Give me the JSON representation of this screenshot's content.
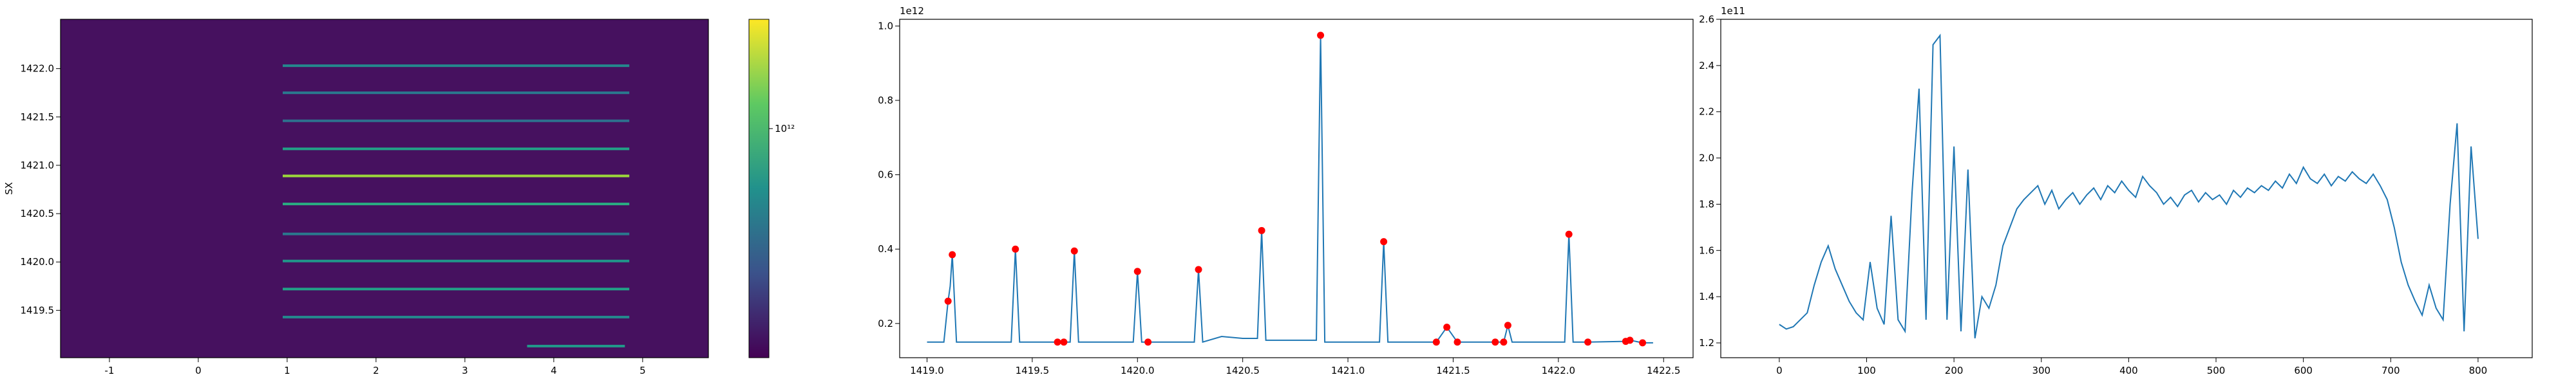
{
  "chart_data": [
    {
      "type": "heatmap",
      "ylabel": "SX",
      "xlim": [
        -1.55,
        5.74
      ],
      "ylim": [
        1419.01,
        1422.51
      ],
      "xticks": [
        -1,
        0,
        1,
        2,
        3,
        4,
        5
      ],
      "yticks": [
        {
          "value": 1419.5,
          "label": "1419.5"
        },
        {
          "value": 1420,
          "label": "1420.0"
        },
        {
          "value": 1420.5,
          "label": "1420.5"
        },
        {
          "value": 1421,
          "label": "1421.0"
        },
        {
          "value": 1421.5,
          "label": "1421.5"
        },
        {
          "value": 1422,
          "label": "1422.0"
        }
      ],
      "row_centers": [
        1422.03,
        1421.75,
        1421.46,
        1421.17,
        1420.89,
        1420.6,
        1420.29,
        1420.01,
        1419.72,
        1419.43,
        1419.13
      ],
      "row_values": [
        500000000000,
        400000000000,
        350000000000,
        700000000000,
        1800000000000,
        800000000000,
        400000000000,
        600000000000,
        700000000000,
        500000000000,
        600000000000
      ],
      "row_x0": [
        0.95,
        0.95,
        0.95,
        0.95,
        0.95,
        0.95,
        0.95,
        0.95,
        0.95,
        0.95,
        3.7
      ],
      "row_x1": [
        4.85,
        4.85,
        4.85,
        4.85,
        4.85,
        4.85,
        4.85,
        4.85,
        4.85,
        4.85,
        4.8
      ],
      "colorbar_scale": "log",
      "clim": [
        100000000000,
        3000000000000
      ],
      "colorbar_ticks": [
        {
          "value": 1000000000000,
          "label": "10¹²"
        }
      ]
    },
    {
      "type": "line",
      "offset_text": "1e12",
      "xlim": [
        1418.87,
        1422.64
      ],
      "ylim": [
        0.108,
        1.018
      ],
      "xticks": [
        {
          "value": 1419,
          "label": "1419.0"
        },
        1419.5,
        {
          "value": 1420,
          "label": "1420.0"
        },
        1420.5,
        {
          "value": 1421,
          "label": "1421.0"
        },
        1421.5,
        {
          "value": 1422,
          "label": "1422.0"
        },
        1422.5
      ],
      "yticks": [
        0.2,
        0.4,
        0.6,
        0.8,
        {
          "value": 1,
          "label": "1.0"
        }
      ],
      "series": [
        {
          "color": "#1f77b4",
          "marker": "none",
          "linestyle": "solid",
          "x": [
            1419.0,
            1419.08,
            1419.1,
            1419.11,
            1419.12,
            1419.14,
            1419.4,
            1419.42,
            1419.44,
            1419.6,
            1419.62,
            1419.65,
            1419.68,
            1419.7,
            1419.72,
            1419.98,
            1420.0,
            1420.02,
            1420.05,
            1420.27,
            1420.29,
            1420.31,
            1420.4,
            1420.5,
            1420.57,
            1420.59,
            1420.61,
            1420.85,
            1420.87,
            1420.89,
            1421.15,
            1421.17,
            1421.19,
            1421.42,
            1421.47,
            1421.52,
            1421.7,
            1421.74,
            1421.76,
            1421.78,
            1422.03,
            1422.05,
            1422.07,
            1422.14,
            1422.32,
            1422.34,
            1422.4,
            1422.45
          ],
          "values": [
            0.15,
            0.15,
            0.26,
            0.3,
            0.385,
            0.15,
            0.15,
            0.4,
            0.15,
            0.15,
            0.15,
            0.15,
            0.15,
            0.395,
            0.15,
            0.15,
            0.34,
            0.15,
            0.15,
            0.15,
            0.345,
            0.15,
            0.165,
            0.16,
            0.16,
            0.45,
            0.155,
            0.155,
            0.975,
            0.15,
            0.15,
            0.42,
            0.15,
            0.15,
            0.19,
            0.15,
            0.15,
            0.15,
            0.195,
            0.15,
            0.15,
            0.44,
            0.15,
            0.15,
            0.152,
            0.155,
            0.148,
            0.148
          ]
        },
        {
          "color": "#ff0000",
          "marker": "o",
          "linestyle": "none",
          "x": [
            1419.1,
            1419.12,
            1419.42,
            1419.62,
            1419.65,
            1419.7,
            1420.0,
            1420.05,
            1420.29,
            1420.59,
            1420.87,
            1421.17,
            1421.42,
            1421.47,
            1421.52,
            1421.7,
            1421.74,
            1421.76,
            1422.05,
            1422.14,
            1422.32,
            1422.34,
            1422.4
          ],
          "values": [
            0.26,
            0.385,
            0.4,
            0.15,
            0.15,
            0.395,
            0.34,
            0.15,
            0.345,
            0.45,
            0.975,
            0.42,
            0.15,
            0.19,
            0.15,
            0.15,
            0.15,
            0.195,
            0.44,
            0.15,
            0.152,
            0.155,
            0.148
          ]
        }
      ]
    },
    {
      "type": "line",
      "offset_text": "1e11",
      "xlim": [
        -67,
        862
      ],
      "ylim": [
        1.136,
        2.6
      ],
      "xticks": [
        0,
        100,
        200,
        300,
        400,
        500,
        600,
        700,
        800
      ],
      "yticks": [
        1.2,
        1.4,
        1.6,
        1.8,
        {
          "value": 2,
          "label": "2.0"
        },
        2.2,
        2.4,
        2.6
      ],
      "series": [
        {
          "color": "#1f77b4",
          "marker": "none",
          "linestyle": "solid",
          "x": [
            0,
            8,
            16,
            24,
            32,
            40,
            48,
            56,
            64,
            72,
            80,
            88,
            96,
            104,
            112,
            120,
            128,
            136,
            144,
            152,
            160,
            168,
            176,
            184,
            192,
            200,
            208,
            216,
            224,
            232,
            240,
            248,
            256,
            264,
            272,
            280,
            288,
            296,
            304,
            312,
            320,
            328,
            336,
            344,
            352,
            360,
            368,
            376,
            384,
            392,
            400,
            408,
            416,
            424,
            432,
            440,
            448,
            456,
            464,
            472,
            480,
            488,
            496,
            504,
            512,
            520,
            528,
            536,
            544,
            552,
            560,
            568,
            576,
            584,
            592,
            600,
            608,
            616,
            624,
            632,
            640,
            648,
            656,
            664,
            672,
            680,
            688,
            696,
            704,
            712,
            720,
            728,
            736,
            744,
            752,
            760,
            768,
            776,
            784,
            792,
            800
          ],
          "values": [
            1.28,
            1.26,
            1.27,
            1.3,
            1.33,
            1.45,
            1.55,
            1.62,
            1.52,
            1.45,
            1.38,
            1.33,
            1.3,
            1.55,
            1.35,
            1.28,
            1.75,
            1.3,
            1.25,
            1.85,
            2.3,
            1.3,
            2.49,
            2.53,
            1.3,
            2.05,
            1.25,
            1.95,
            1.22,
            1.4,
            1.35,
            1.45,
            1.62,
            1.7,
            1.78,
            1.82,
            1.85,
            1.88,
            1.8,
            1.86,
            1.78,
            1.82,
            1.85,
            1.8,
            1.84,
            1.87,
            1.82,
            1.88,
            1.85,
            1.9,
            1.86,
            1.83,
            1.92,
            1.88,
            1.85,
            1.8,
            1.83,
            1.79,
            1.84,
            1.86,
            1.81,
            1.85,
            1.82,
            1.84,
            1.8,
            1.86,
            1.83,
            1.87,
            1.85,
            1.88,
            1.86,
            1.9,
            1.87,
            1.93,
            1.89,
            1.96,
            1.91,
            1.89,
            1.93,
            1.88,
            1.92,
            1.9,
            1.94,
            1.91,
            1.89,
            1.93,
            1.88,
            1.82,
            1.7,
            1.55,
            1.45,
            1.38,
            1.32,
            1.45,
            1.35,
            1.3,
            1.8,
            2.15,
            1.25,
            2.05,
            1.65
          ]
        }
      ]
    }
  ]
}
